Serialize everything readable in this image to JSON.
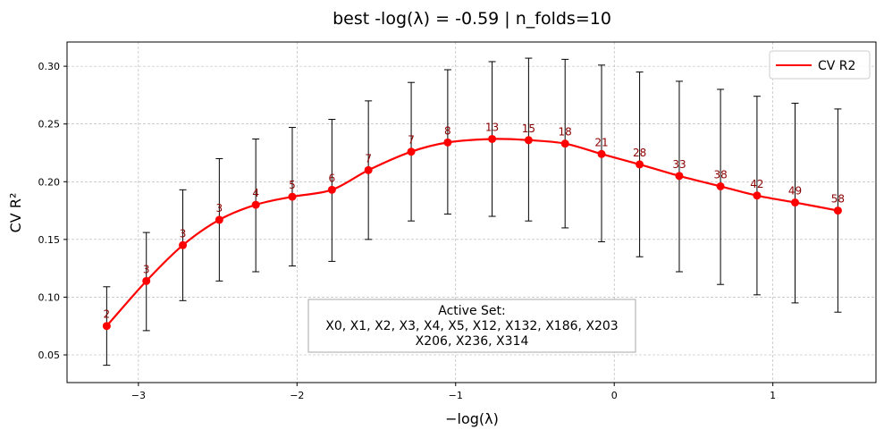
{
  "chart_data": {
    "type": "line",
    "title": "best -log(λ) = -0.59 | n_folds=10",
    "xlabel": "−log(λ)",
    "ylabel": "CV R²",
    "xlim": [
      -3.45,
      1.65
    ],
    "ylim": [
      0.026,
      0.321
    ],
    "x_ticks": [
      -3,
      -2,
      -1,
      0,
      1
    ],
    "x_tick_labels": [
      "−3",
      "−2",
      "−1",
      "0",
      "1"
    ],
    "y_ticks": [
      0.05,
      0.1,
      0.15,
      0.2,
      0.25,
      0.3
    ],
    "y_tick_labels": [
      "0.05",
      "0.10",
      "0.15",
      "0.20",
      "0.25",
      "0.30"
    ],
    "grid": true,
    "legend": {
      "position": "top-right",
      "entries": [
        "CV R2"
      ]
    },
    "series": [
      {
        "name": "CV R2",
        "color": "#ff0000",
        "x": [
          -3.2,
          -2.95,
          -2.72,
          -2.49,
          -2.26,
          -2.03,
          -1.78,
          -1.55,
          -1.28,
          -1.05,
          -0.77,
          -0.54,
          -0.31,
          -0.08,
          0.16,
          0.41,
          0.67,
          0.9,
          1.14,
          1.41
        ],
        "y": [
          0.075,
          0.114,
          0.145,
          0.167,
          0.18,
          0.187,
          0.193,
          0.21,
          0.226,
          0.234,
          0.237,
          0.236,
          0.233,
          0.224,
          0.215,
          0.205,
          0.196,
          0.188,
          0.182,
          0.175
        ],
        "err_low": [
          0.041,
          0.071,
          0.097,
          0.114,
          0.122,
          0.127,
          0.131,
          0.15,
          0.166,
          0.172,
          0.17,
          0.166,
          0.16,
          0.148,
          0.135,
          0.122,
          0.111,
          0.102,
          0.095,
          0.087
        ],
        "err_high": [
          0.109,
          0.156,
          0.193,
          0.22,
          0.237,
          0.247,
          0.254,
          0.27,
          0.286,
          0.297,
          0.304,
          0.307,
          0.306,
          0.301,
          0.295,
          0.287,
          0.28,
          0.274,
          0.268,
          0.263
        ],
        "labels": [
          "2",
          "3",
          "3",
          "3",
          "4",
          "5",
          "6",
          "7",
          "7",
          "8",
          "13",
          "15",
          "18",
          "21",
          "28",
          "33",
          "38",
          "42",
          "49",
          "58"
        ]
      }
    ],
    "annotation_box": {
      "lines": [
        "Active Set:",
        "X0, X1, X2, X3, X4, X5, X12, X132, X186, X203",
        "X206, X236, X314"
      ]
    }
  }
}
